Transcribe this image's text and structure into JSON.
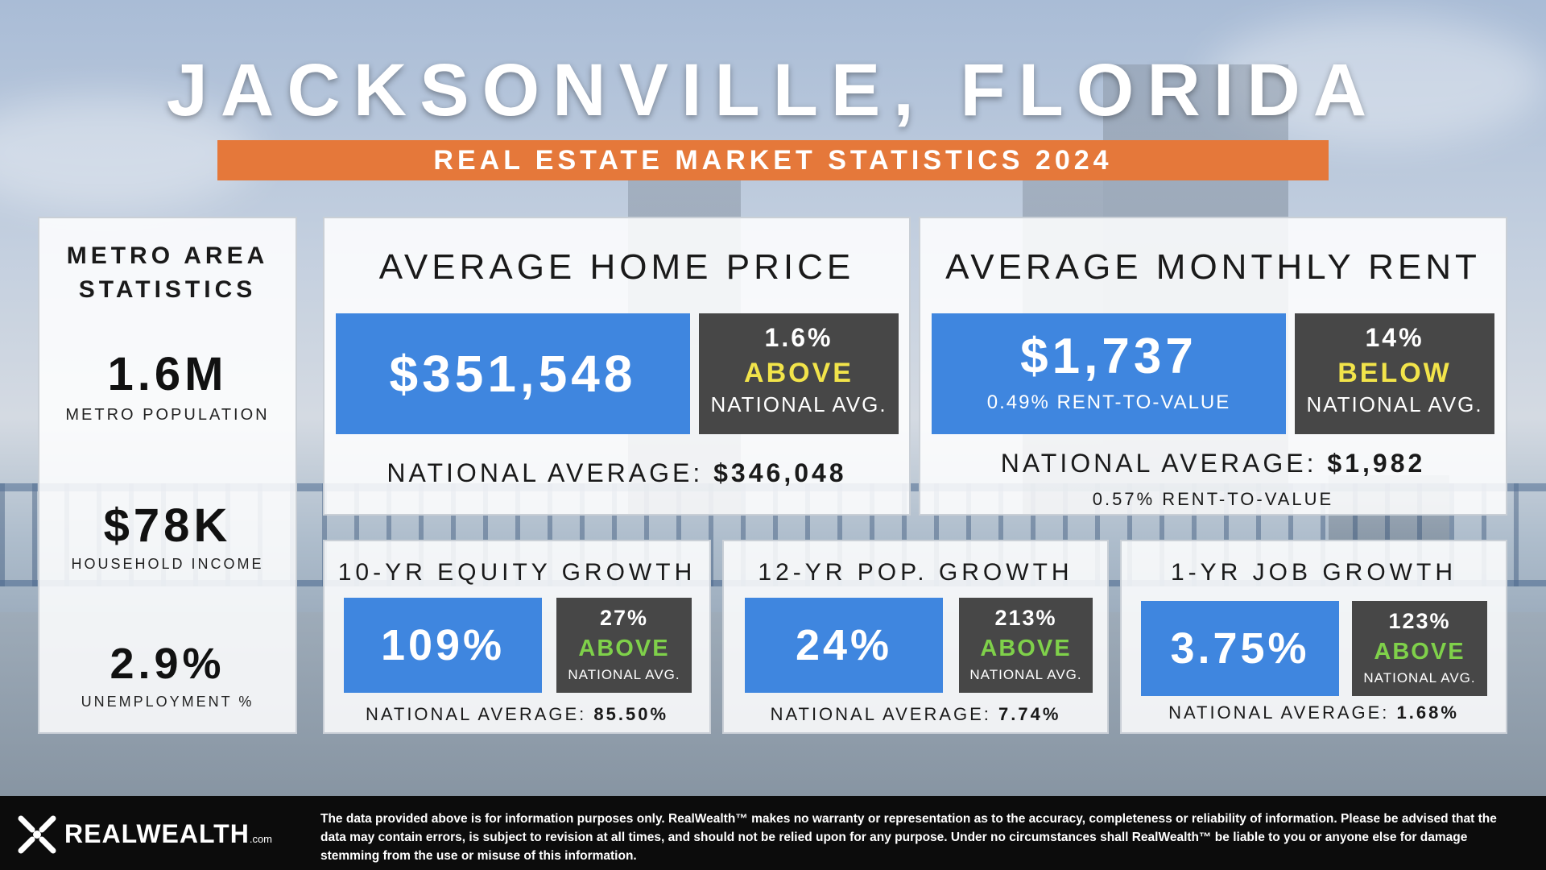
{
  "header": {
    "title": "JACKSONVILLE, FLORIDA",
    "subtitle": "REAL ESTATE MARKET STATISTICS 2024"
  },
  "metro": {
    "heading_line1": "METRO AREA",
    "heading_line2": "STATISTICS",
    "population_value": "1.6M",
    "population_label": "METRO POPULATION",
    "income_value": "$78K",
    "income_label": "HOUSEHOLD INCOME",
    "unemployment_value": "2.9%",
    "unemployment_label": "UNEMPLOYMENT %"
  },
  "home_price": {
    "heading": "AVERAGE HOME PRICE",
    "value": "$351,548",
    "compare_pct": "1.6%",
    "compare_dir": "ABOVE",
    "compare_label": "NATIONAL AVG.",
    "national_label": "NATIONAL AVERAGE:",
    "national_value": "$346,048"
  },
  "rent": {
    "heading": "AVERAGE MONTHLY RENT",
    "value": "$1,737",
    "ratio": "0.49% RENT-TO-VALUE",
    "compare_pct": "14%",
    "compare_dir": "BELOW",
    "compare_label": "NATIONAL AVG.",
    "national_label": "NATIONAL AVERAGE:",
    "national_value": "$1,982",
    "national_ratio": "0.57% RENT-TO-VALUE"
  },
  "equity": {
    "heading": "10-YR EQUITY GROWTH",
    "value": "109%",
    "compare_pct": "27%",
    "compare_dir": "ABOVE",
    "compare_label": "NATIONAL AVG.",
    "national_label": "NATIONAL AVERAGE:",
    "national_value": "85.50%"
  },
  "pop_growth": {
    "heading": "12-YR POP. GROWTH",
    "value": "24%",
    "compare_pct": "213%",
    "compare_dir": "ABOVE",
    "compare_label": "NATIONAL AVG.",
    "national_label": "NATIONAL AVERAGE:",
    "national_value": "7.74%"
  },
  "job_growth": {
    "heading": "1-YR JOB GROWTH",
    "value": "3.75%",
    "compare_pct": "123%",
    "compare_dir": "ABOVE",
    "compare_label": "NATIONAL AVG.",
    "national_label": "NATIONAL AVERAGE:",
    "national_value": "1.68%"
  },
  "footer": {
    "logo_text": "REALWEALTH",
    "logo_suffix": ".com",
    "disclaimer": "The data provided above is for information purposes only. RealWealth™ makes no warranty or representation as to the accuracy, completeness or reliability of information. Please be advised that the data may contain errors, is subject to revision at all times, and should not be relied upon for any purpose. Under no circumstances shall RealWealth™ be liable to you or anyone else for damage stemming from the use or misuse of this information."
  },
  "colors": {
    "accent_orange": "#e5783a",
    "value_blue": "#3f86df",
    "compare_dark": "#474747",
    "above_yellow": "#f2e44a",
    "above_green": "#7fd14a"
  }
}
